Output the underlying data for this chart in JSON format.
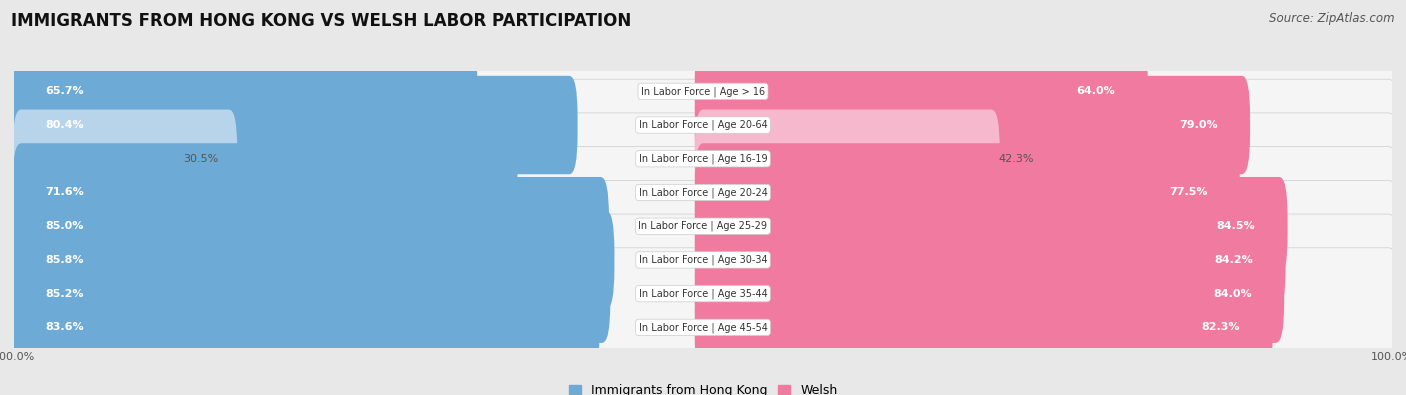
{
  "title": "IMMIGRANTS FROM HONG KONG VS WELSH LABOR PARTICIPATION",
  "source": "Source: ZipAtlas.com",
  "categories": [
    "In Labor Force | Age > 16",
    "In Labor Force | Age 20-64",
    "In Labor Force | Age 16-19",
    "In Labor Force | Age 20-24",
    "In Labor Force | Age 25-29",
    "In Labor Force | Age 30-34",
    "In Labor Force | Age 35-44",
    "In Labor Force | Age 45-54"
  ],
  "hk_values": [
    65.7,
    80.4,
    30.5,
    71.6,
    85.0,
    85.8,
    85.2,
    83.6
  ],
  "welsh_values": [
    64.0,
    79.0,
    42.3,
    77.5,
    84.5,
    84.2,
    84.0,
    82.3
  ],
  "hk_color": "#6eaad6",
  "hk_color_light": "#b8d4eb",
  "welsh_color": "#f07aA0",
  "welsh_color_light": "#f5b8cc",
  "max_value": 100.0,
  "bg_color": "#e8e8e8",
  "row_bg": "#f5f5f5",
  "row_border": "#cccccc",
  "white": "#ffffff",
  "label_white": "#ffffff",
  "label_dark": "#555555",
  "title_fontsize": 12,
  "source_fontsize": 8.5,
  "bar_label_fontsize": 8,
  "category_fontsize": 7,
  "legend_fontsize": 9,
  "axis_fontsize": 8
}
